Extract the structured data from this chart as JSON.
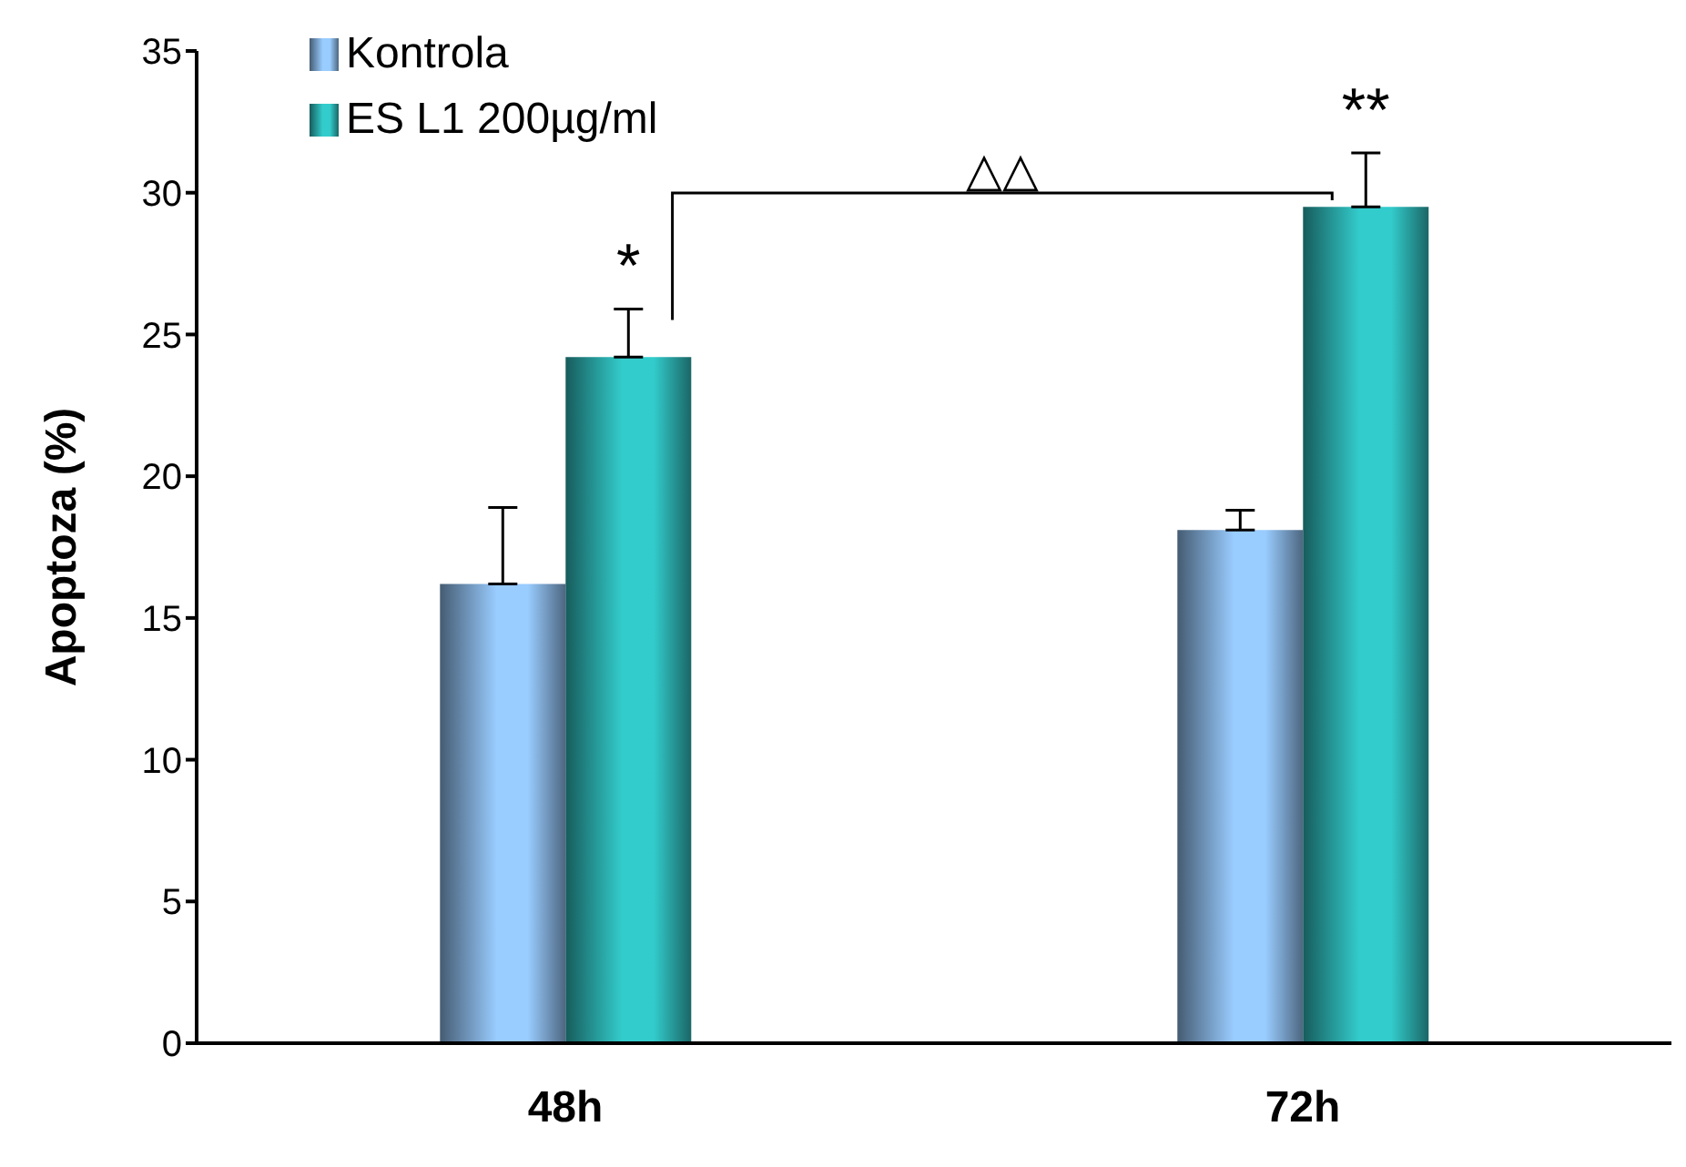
{
  "chart_data": {
    "type": "bar",
    "ylabel": "Apoptoza (%)",
    "categories": [
      "48h",
      "72h"
    ],
    "series": [
      {
        "name": "Kontrola",
        "color": "#99ccff",
        "values": [
          16.2,
          18.1
        ],
        "errors": [
          [
            16.2,
            18.9
          ],
          [
            18.1,
            18.8
          ]
        ]
      },
      {
        "name": "ES L1 200µg/ml",
        "color": "#33cccc",
        "values": [
          24.2,
          29.5
        ],
        "errors": [
          [
            24.2,
            25.9
          ],
          [
            29.5,
            31.4
          ]
        ]
      }
    ],
    "ylim": [
      0,
      35
    ],
    "yticks": [
      0,
      5,
      10,
      15,
      20,
      25,
      30,
      35
    ],
    "grid": false,
    "legend": "top left",
    "annotations": [
      "*",
      "**",
      "△△"
    ]
  }
}
